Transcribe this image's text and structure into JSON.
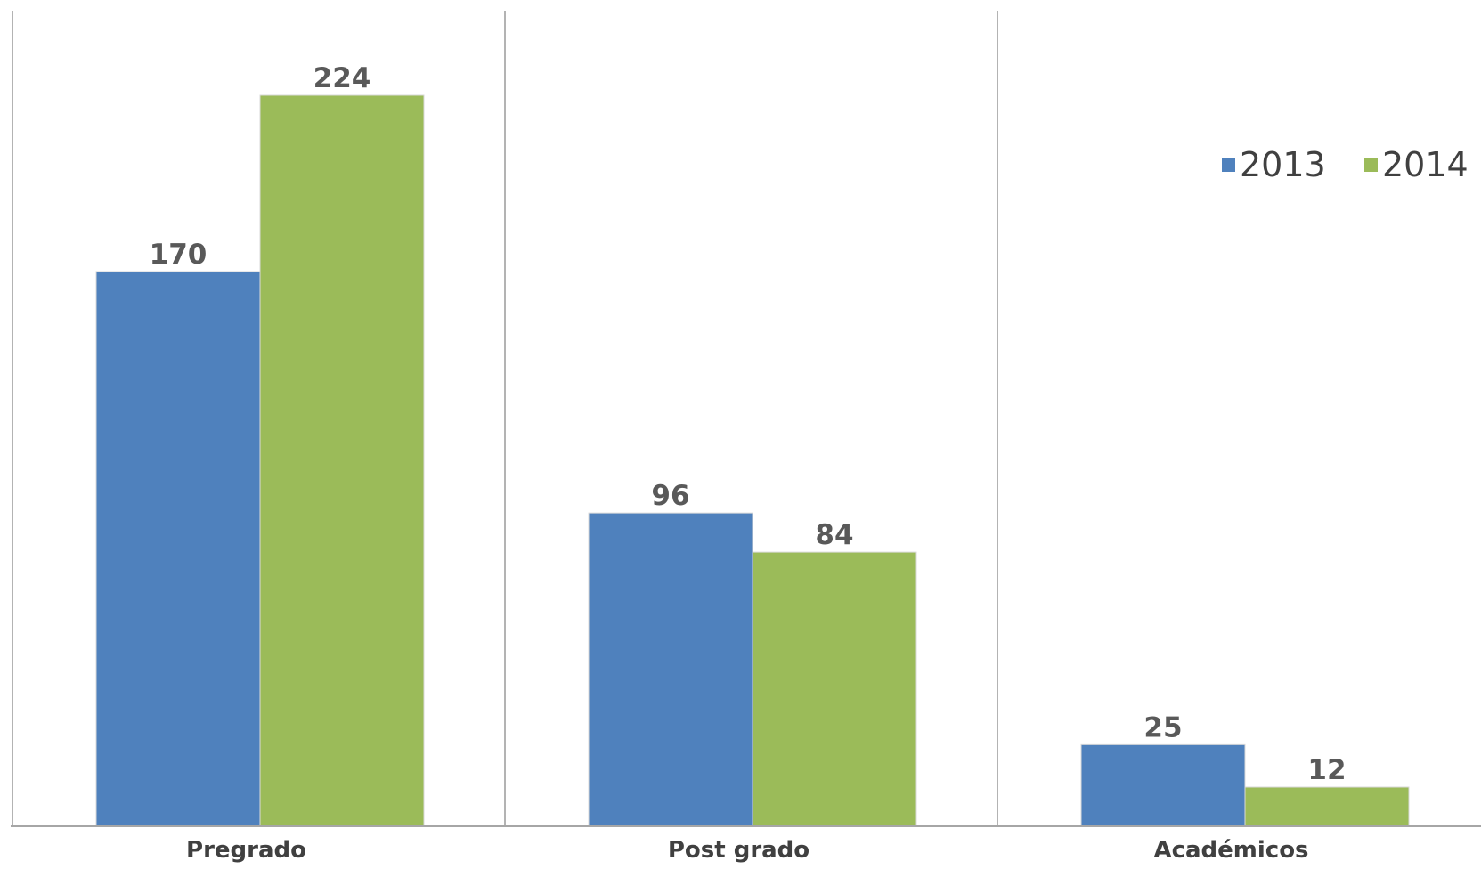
{
  "chart_data": {
    "type": "bar",
    "categories": [
      "Pregrado",
      "Post grado",
      "Académicos"
    ],
    "series": [
      {
        "name": "2013",
        "values": [
          170,
          96,
          25
        ],
        "color": "#4f81bd"
      },
      {
        "name": "2014",
        "values": [
          224,
          84,
          12
        ],
        "color": "#9bbb59"
      }
    ],
    "ylim": [
      0,
      224
    ],
    "data_labels": true,
    "category_separators": true,
    "legend": "top-right",
    "grid": false
  }
}
